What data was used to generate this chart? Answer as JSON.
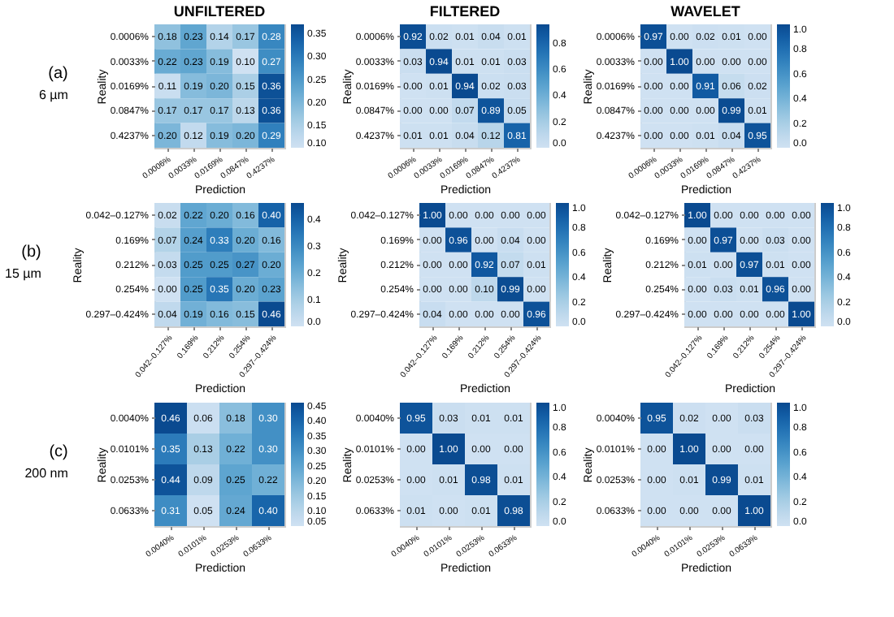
{
  "chart_data": [
    {
      "type": "heatmap",
      "title": "UNFILTERED",
      "xlabel": "Prediction",
      "ylabel": "Reality",
      "annotations": [
        "(a)",
        "6 µm"
      ],
      "data_labels": true,
      "categories": [
        "0.0006%",
        "0.0033%",
        "0.0169%",
        "0.0847%",
        "0.4237%"
      ],
      "y_categories": [
        "0.0006%",
        "0.0033%",
        "0.0169%",
        "0.0847%",
        "0.4237%"
      ],
      "cells": [
        [
          0.18,
          0.23,
          0.14,
          0.17,
          0.28
        ],
        [
          0.22,
          0.23,
          0.19,
          0.1,
          0.27
        ],
        [
          0.11,
          0.19,
          0.2,
          0.15,
          0.36
        ],
        [
          0.17,
          0.17,
          0.17,
          0.13,
          0.36
        ],
        [
          0.2,
          0.12,
          0.19,
          0.2,
          0.29
        ]
      ],
      "cell_labels": [
        [
          "0.18",
          "0.23",
          "0.14",
          "0.17",
          "0.28"
        ],
        [
          "0.22",
          "0.23",
          "0.19",
          "0.10",
          "0.27"
        ],
        [
          "0.11",
          "0.19",
          "0.20",
          "0.15",
          "0.36"
        ],
        [
          "0.17",
          "0.17",
          "0.17",
          "0.13",
          "0.36"
        ],
        [
          "0.20",
          "0.12",
          "0.19",
          "0.20",
          "0.29"
        ]
      ],
      "clim": [
        0.1,
        0.37
      ],
      "cticks": [
        {
          "value": 0.1,
          "label": "0.10"
        },
        {
          "value": 0.15,
          "label": "0.15"
        },
        {
          "value": 0.2,
          "label": "0.20"
        },
        {
          "value": 0.25,
          "label": "0.25"
        },
        {
          "value": 0.3,
          "label": "0.30"
        },
        {
          "value": 0.35,
          "label": "0.35"
        }
      ]
    },
    {
      "type": "heatmap",
      "title": "FILTERED",
      "xlabel": "Prediction",
      "ylabel": "Reality",
      "data_labels": true,
      "categories": [
        "0.0006%",
        "0.0033%",
        "0.0169%",
        "0.0847%",
        "0.4237%"
      ],
      "y_categories": [
        "0.0006%",
        "0.0033%",
        "0.0169%",
        "0.0847%",
        "0.4237%"
      ],
      "cells": [
        [
          0.92,
          0.02,
          0.01,
          0.04,
          0.01
        ],
        [
          0.03,
          0.94,
          0.01,
          0.01,
          0.03
        ],
        [
          0.0,
          0.01,
          0.94,
          0.02,
          0.03
        ],
        [
          0.0,
          0.0,
          0.07,
          0.89,
          0.05
        ],
        [
          0.01,
          0.01,
          0.04,
          0.12,
          0.81
        ]
      ],
      "cell_labels": [
        [
          "0.92",
          "0.02",
          "0.01",
          "0.04",
          "0.01"
        ],
        [
          "0.03",
          "0.94",
          "0.01",
          "0.01",
          "0.03"
        ],
        [
          "0.00",
          "0.01",
          "0.94",
          "0.02",
          "0.03"
        ],
        [
          "0.00",
          "0.00",
          "0.07",
          "0.89",
          "0.05"
        ],
        [
          "0.01",
          "0.01",
          "0.04",
          "0.12",
          "0.81"
        ]
      ],
      "clim": [
        0,
        0.94
      ],
      "cticks": [
        {
          "value": 0,
          "label": "0.0"
        },
        {
          "value": 0.2,
          "label": "0.2"
        },
        {
          "value": 0.4,
          "label": "0.4"
        },
        {
          "value": 0.6,
          "label": "0.6"
        },
        {
          "value": 0.8,
          "label": "0.8"
        }
      ]
    },
    {
      "type": "heatmap",
      "title": "WAVELET",
      "xlabel": "Prediction",
      "ylabel": "Reality",
      "data_labels": true,
      "categories": [
        "0.0006%",
        "0.0033%",
        "0.0169%",
        "0.0847%",
        "0.4237%"
      ],
      "y_categories": [
        "0.0006%",
        "0.0033%",
        "0.0169%",
        "0.0847%",
        "0.4237%"
      ],
      "cells": [
        [
          0.97,
          0.0,
          0.02,
          0.01,
          0.0
        ],
        [
          0.0,
          1.0,
          0.0,
          0.0,
          0.0
        ],
        [
          0.0,
          0.0,
          0.91,
          0.06,
          0.02
        ],
        [
          0.0,
          0.0,
          0.0,
          0.99,
          0.01
        ],
        [
          0.0,
          0.0,
          0.01,
          0.04,
          0.95
        ]
      ],
      "cell_labels": [
        [
          "0.97",
          "0.00",
          "0.02",
          "0.01",
          "0.00"
        ],
        [
          "0.00",
          "1.00",
          "0.00",
          "0.00",
          "0.00"
        ],
        [
          "0.00",
          "0.00",
          "0.91",
          "0.06",
          "0.02"
        ],
        [
          "0.00",
          "0.00",
          "0.00",
          "0.99",
          "0.01"
        ],
        [
          "0.00",
          "0.00",
          "0.01",
          "0.04",
          "0.95"
        ]
      ],
      "clim": [
        0,
        1
      ],
      "cticks": [
        {
          "value": 0,
          "label": "0.0"
        },
        {
          "value": 0.2,
          "label": "0.2"
        },
        {
          "value": 0.4,
          "label": "0.4"
        },
        {
          "value": 0.6,
          "label": "0.6"
        },
        {
          "value": 0.8,
          "label": "0.8"
        },
        {
          "value": 1,
          "label": "1.0"
        }
      ]
    },
    {
      "type": "heatmap",
      "xlabel": "Prediction",
      "ylabel": "Reality",
      "annotations": [
        "(b)",
        "15 µm"
      ],
      "data_labels": true,
      "categories": [
        "0.042–0.127%",
        "0.169%",
        "0.212%",
        "0.254%",
        "0.297–0.424%"
      ],
      "y_categories": [
        "0.042–0.127%",
        "0.169%",
        "0.212%",
        "0.254%",
        "0.297–0.424%"
      ],
      "cells": [
        [
          0.02,
          0.22,
          0.2,
          0.16,
          0.4
        ],
        [
          0.07,
          0.24,
          0.33,
          0.2,
          0.16
        ],
        [
          0.03,
          0.25,
          0.25,
          0.27,
          0.2
        ],
        [
          0.0,
          0.25,
          0.35,
          0.2,
          0.23
        ],
        [
          0.04,
          0.19,
          0.16,
          0.15,
          0.46
        ]
      ],
      "cell_labels": [
        [
          "0.02",
          "0.22",
          "0.20",
          "0.16",
          "0.40"
        ],
        [
          "0.07",
          "0.24",
          "0.33",
          "0.20",
          "0.16"
        ],
        [
          "0.03",
          "0.25",
          "0.25",
          "0.27",
          "0.20"
        ],
        [
          "0.00",
          "0.25",
          "0.35",
          "0.20",
          "0.23"
        ],
        [
          "0.04",
          "0.19",
          "0.16",
          "0.15",
          "0.46"
        ]
      ],
      "clim": [
        0,
        0.46
      ],
      "cticks": [
        {
          "value": 0,
          "label": "0.0"
        },
        {
          "value": 0.1,
          "label": "0.1"
        },
        {
          "value": 0.2,
          "label": "0.2"
        },
        {
          "value": 0.3,
          "label": "0.3"
        },
        {
          "value": 0.4,
          "label": "0.4"
        }
      ]
    },
    {
      "type": "heatmap",
      "xlabel": "Prediction",
      "ylabel": "Reality",
      "data_labels": true,
      "categories": [
        "0.042–0.127%",
        "0.169%",
        "0.212%",
        "0.254%",
        "0.297–0.424%"
      ],
      "y_categories": [
        "0.042–0.127%",
        "0.169%",
        "0.212%",
        "0.254%",
        "0.297–0.424%"
      ],
      "cells": [
        [
          1.0,
          0.0,
          0.0,
          0.0,
          0.0
        ],
        [
          0.0,
          0.96,
          0.0,
          0.04,
          0.0
        ],
        [
          0.0,
          0.0,
          0.92,
          0.07,
          0.01
        ],
        [
          0.0,
          0.0,
          0.1,
          0.99,
          0.0
        ],
        [
          0.04,
          0.0,
          0.0,
          0.0,
          0.96
        ]
      ],
      "cell_labels": [
        [
          "1.00",
          "0.00",
          "0.00",
          "0.00",
          "0.00"
        ],
        [
          "0.00",
          "0.96",
          "0.00",
          "0.04",
          "0.00"
        ],
        [
          "0.00",
          "0.00",
          "0.92",
          "0.07",
          "0.01"
        ],
        [
          "0.00",
          "0.00",
          "0.10",
          "0.99",
          "0.00"
        ],
        [
          "0.04",
          "0.00",
          "0.00",
          "0.00",
          "0.96"
        ]
      ],
      "clim": [
        0,
        1
      ],
      "cticks": [
        {
          "value": 0,
          "label": "0.0"
        },
        {
          "value": 0.2,
          "label": "0.2"
        },
        {
          "value": 0.4,
          "label": "0.4"
        },
        {
          "value": 0.6,
          "label": "0.6"
        },
        {
          "value": 0.8,
          "label": "0.8"
        },
        {
          "value": 1,
          "label": "1.0"
        }
      ]
    },
    {
      "type": "heatmap",
      "xlabel": "Prediction",
      "ylabel": "Reality",
      "data_labels": true,
      "categories": [
        "0.042–0.127%",
        "0.169%",
        "0.212%",
        "0.254%",
        "0.297–0.424%"
      ],
      "y_categories": [
        "0.042–0.127%",
        "0.169%",
        "0.212%",
        "0.254%",
        "0.297–0.424%"
      ],
      "cells": [
        [
          1.0,
          0.0,
          0.0,
          0.0,
          0.0
        ],
        [
          0.0,
          0.97,
          0.0,
          0.03,
          0.0
        ],
        [
          0.01,
          0.0,
          0.97,
          0.01,
          0.0
        ],
        [
          0.0,
          0.03,
          0.01,
          0.96,
          0.0
        ],
        [
          0.0,
          0.0,
          0.0,
          0.0,
          1.0
        ]
      ],
      "cell_labels": [
        [
          "1.00",
          "0.00",
          "0.00",
          "0.00",
          "0.00"
        ],
        [
          "0.00",
          "0.97",
          "0.00",
          "0.03",
          "0.00"
        ],
        [
          "0.01",
          "0.00",
          "0.97",
          "0.01",
          "0.00"
        ],
        [
          "0.00",
          "0.03",
          "0.01",
          "0.96",
          "0.00"
        ],
        [
          "0.00",
          "0.00",
          "0.00",
          "0.00",
          "1.00"
        ]
      ],
      "clim": [
        0,
        1
      ],
      "cticks": [
        {
          "value": 0,
          "label": "0.0"
        },
        {
          "value": 0.2,
          "label": "0.2"
        },
        {
          "value": 0.4,
          "label": "0.4"
        },
        {
          "value": 0.6,
          "label": "0.6"
        },
        {
          "value": 0.8,
          "label": "0.8"
        },
        {
          "value": 1,
          "label": "1.0"
        }
      ]
    },
    {
      "type": "heatmap",
      "xlabel": "Prediction",
      "ylabel": "Reality",
      "annotations": [
        "(c)",
        "200 nm"
      ],
      "data_labels": true,
      "categories": [
        "0.0040%",
        "0.0101%",
        "0.0253%",
        "0.0633%"
      ],
      "y_categories": [
        "0.0040%",
        "0.0101%",
        "0.0253%",
        "0.0633%"
      ],
      "cells": [
        [
          0.46,
          0.06,
          0.18,
          0.3
        ],
        [
          0.35,
          0.13,
          0.22,
          0.3
        ],
        [
          0.44,
          0.09,
          0.25,
          0.22
        ],
        [
          0.31,
          0.05,
          0.24,
          0.4
        ]
      ],
      "cell_labels": [
        [
          "0.46",
          "0.06",
          "0.18",
          "0.30"
        ],
        [
          "0.35",
          "0.13",
          "0.22",
          "0.30"
        ],
        [
          "0.44",
          "0.09",
          "0.25",
          "0.22"
        ],
        [
          "0.31",
          "0.05",
          "0.24",
          "0.40"
        ]
      ],
      "clim": [
        0.05,
        0.46
      ],
      "cticks": [
        {
          "value": 0.05,
          "label": "0.05"
        },
        {
          "value": 0.1,
          "label": "0.10"
        },
        {
          "value": 0.15,
          "label": "0.15"
        },
        {
          "value": 0.2,
          "label": "0.20"
        },
        {
          "value": 0.25,
          "label": "0.25"
        },
        {
          "value": 0.3,
          "label": "0.30"
        },
        {
          "value": 0.35,
          "label": "0.35"
        },
        {
          "value": 0.4,
          "label": "0.40"
        },
        {
          "value": 0.45,
          "label": "0.45"
        }
      ]
    },
    {
      "type": "heatmap",
      "xlabel": "Prediction",
      "ylabel": "Reality",
      "data_labels": true,
      "categories": [
        "0.0040%",
        "0.0101%",
        "0.0253%",
        "0.0633%"
      ],
      "y_categories": [
        "0.0040%",
        "0.0101%",
        "0.0253%",
        "0.0633%"
      ],
      "cells": [
        [
          0.95,
          0.03,
          0.01,
          0.01
        ],
        [
          0.0,
          1.0,
          0.0,
          0.0
        ],
        [
          0.0,
          0.01,
          0.98,
          0.01
        ],
        [
          0.01,
          0.0,
          0.01,
          0.98
        ]
      ],
      "cell_labels": [
        [
          "0.95",
          "0.03",
          "0.01",
          "0.01"
        ],
        [
          "0.00",
          "1.00",
          "0.00",
          "0.00"
        ],
        [
          "0.00",
          "0.01",
          "0.98",
          "0.01"
        ],
        [
          "0.01",
          "0.00",
          "0.01",
          "0.98"
        ]
      ],
      "clim": [
        0,
        1
      ],
      "cticks": [
        {
          "value": 0,
          "label": "0.0"
        },
        {
          "value": 0.2,
          "label": "0.2"
        },
        {
          "value": 0.4,
          "label": "0.4"
        },
        {
          "value": 0.6,
          "label": "0.6"
        },
        {
          "value": 0.8,
          "label": "0.8"
        },
        {
          "value": 1,
          "label": "1.0"
        }
      ]
    },
    {
      "type": "heatmap",
      "xlabel": "Prediction",
      "ylabel": "Reality",
      "data_labels": true,
      "categories": [
        "0.0040%",
        "0.0101%",
        "0.0253%",
        "0.0633%"
      ],
      "y_categories": [
        "0.0040%",
        "0.0101%",
        "0.0253%",
        "0.0633%"
      ],
      "cells": [
        [
          0.95,
          0.02,
          0.0,
          0.03
        ],
        [
          0.0,
          1.0,
          0.0,
          0.0
        ],
        [
          0.0,
          0.01,
          0.99,
          0.01
        ],
        [
          0.0,
          0.0,
          0.0,
          1.0
        ]
      ],
      "cell_labels": [
        [
          "0.95",
          "0.02",
          "0.00",
          "0.03"
        ],
        [
          "0.00",
          "1.00",
          "0.00",
          "0.00"
        ],
        [
          "0.00",
          "0.01",
          "0.99",
          "0.01"
        ],
        [
          "0.00",
          "0.00",
          "0.00",
          "1.00"
        ]
      ],
      "clim": [
        0,
        1
      ],
      "cticks": [
        {
          "value": 0,
          "label": "0.0"
        },
        {
          "value": 0.2,
          "label": "0.2"
        },
        {
          "value": 0.4,
          "label": "0.4"
        },
        {
          "value": 0.6,
          "label": "0.6"
        },
        {
          "value": 0.8,
          "label": "0.8"
        },
        {
          "value": 1,
          "label": "1.0"
        }
      ]
    }
  ]
}
